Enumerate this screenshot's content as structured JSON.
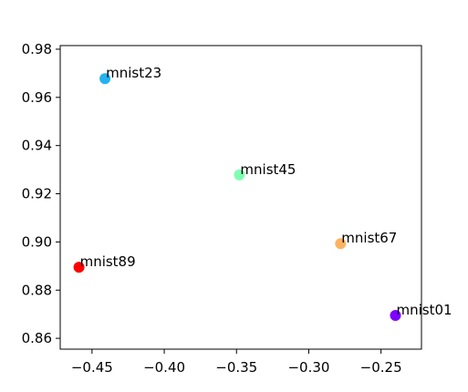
{
  "chart_data": {
    "type": "scatter",
    "title": "",
    "xlabel": "",
    "ylabel": "",
    "xlim": [
      -0.472,
      -0.222
    ],
    "ylim": [
      0.8555,
      0.9815
    ],
    "grid": false,
    "x_ticks": [
      -0.45,
      -0.4,
      -0.35,
      -0.3,
      -0.25
    ],
    "x_tick_labels": [
      "−0.45",
      "−0.40",
      "−0.35",
      "−0.30",
      "−0.25"
    ],
    "y_ticks": [
      0.86,
      0.88,
      0.9,
      0.92,
      0.94,
      0.96,
      0.98
    ],
    "y_tick_labels": [
      "0.86",
      "0.88",
      "0.90",
      "0.92",
      "0.94",
      "0.96",
      "0.98"
    ],
    "points": [
      {
        "label": "mnist01",
        "x": -0.24,
        "y": 0.8695,
        "color": "#7f00ff"
      },
      {
        "label": "mnist23",
        "x": -0.441,
        "y": 0.9678,
        "color": "#26b1ef"
      },
      {
        "label": "mnist45",
        "x": -0.348,
        "y": 0.9278,
        "color": "#80feb3"
      },
      {
        "label": "mnist67",
        "x": -0.278,
        "y": 0.8993,
        "color": "#feb360"
      },
      {
        "label": "mnist89",
        "x": -0.459,
        "y": 0.8895,
        "color": "#ff0000"
      }
    ]
  }
}
